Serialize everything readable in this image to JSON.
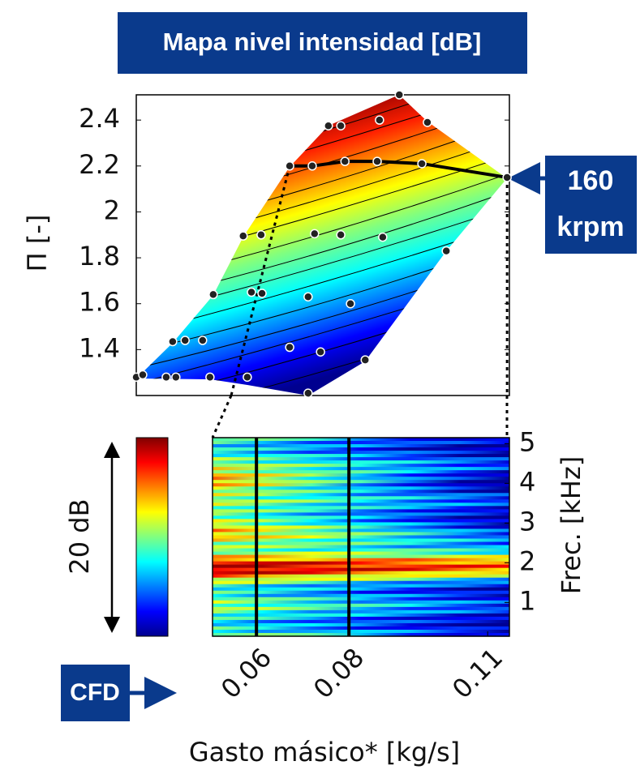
{
  "title": "Mapa nivel intensidad [dB]",
  "chart_data": [
    {
      "type": "contour",
      "ylabel": "Π [-]",
      "xlim": [
        0.03,
        0.111
      ],
      "ylim": [
        1.2,
        2.51
      ],
      "yticks": [
        1.4,
        1.6,
        1.8,
        2,
        2.2,
        2.4
      ],
      "points": {
        "x": [
          0.03,
          0.0314,
          0.0365,
          0.0386,
          0.0379,
          0.0406,
          0.0444,
          0.046,
          0.0467,
          0.0532,
          0.0571,
          0.0541,
          0.055,
          0.0573,
          0.0633,
          0.0682,
          0.0753,
          0.0823,
          0.092,
          0.1105,
          0.0717,
          0.0744,
          0.0828,
          0.0871,
          0.0932,
          0.0687,
          0.0744,
          0.0835,
          0.0973,
          0.0633,
          0.07,
          0.0673,
          0.0765,
          0.0797,
          0.0673
        ],
        "y": [
          1.28,
          1.29,
          1.28,
          1.28,
          1.435,
          1.44,
          1.44,
          1.28,
          1.64,
          1.895,
          1.9,
          1.28,
          1.65,
          1.645,
          2.2,
          2.2,
          2.22,
          2.22,
          2.21,
          2.15,
          2.375,
          2.375,
          2.4,
          2.51,
          2.39,
          1.905,
          1.9,
          1.89,
          1.83,
          1.41,
          1.39,
          1.63,
          1.6,
          1.355,
          1.21
        ]
      },
      "speed_line": {
        "x": [
          0.0633,
          0.0682,
          0.0753,
          0.0823,
          0.092,
          0.1105
        ],
        "y": [
          2.2,
          2.2,
          2.22,
          2.22,
          2.21,
          2.15
        ]
      },
      "speed_label": [
        "160",
        "krpm"
      ]
    },
    {
      "type": "heatmap",
      "xlabel": "Gasto másico* [kg/s]",
      "ylabel": "Frec. [kHz]",
      "xlim": [
        0.0505,
        0.1147
      ],
      "xticks": [
        0.06,
        0.08,
        0.11
      ],
      "ylim": [
        0.15,
        5.15
      ],
      "yticks": [
        1,
        2,
        3,
        4,
        5
      ],
      "vlines": [
        0.06,
        0.08
      ],
      "colorbar_label": "20 dB",
      "source_label": "CFD"
    }
  ]
}
